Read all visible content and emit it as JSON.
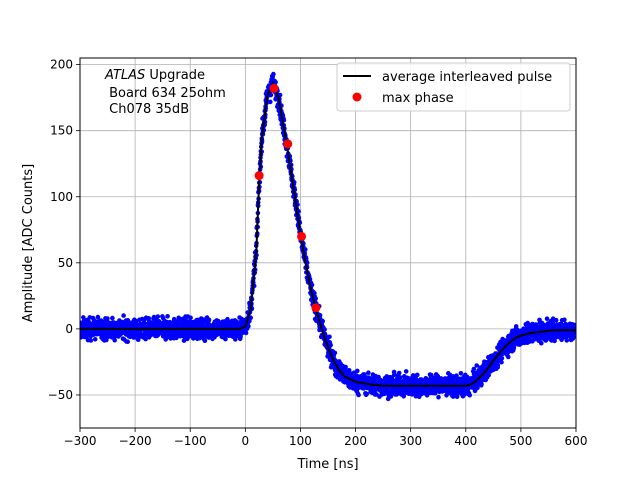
{
  "chart_data": {
    "type": "scatter",
    "xlabel": "Time [ns]",
    "ylabel": "Amplitude [ADC Counts]",
    "xlim": [
      -300,
      600
    ],
    "ylim": [
      -75,
      205
    ],
    "xticks": [
      -300,
      -200,
      -100,
      0,
      100,
      200,
      300,
      400,
      500,
      600
    ],
    "yticks": [
      -50,
      0,
      50,
      100,
      150,
      200
    ],
    "grid": true,
    "legend_position": "top-right",
    "annotation": {
      "italic": "ATLAS",
      "line1_rest": " Upgrade",
      "line2": " Board 634 25ohm",
      "line3": " Ch078 35dB"
    },
    "series": [
      {
        "name": "average interleaved pulse",
        "color": "#000000",
        "points": [
          [
            -300,
            0
          ],
          [
            -10,
            0
          ],
          [
            0,
            2
          ],
          [
            10,
            15
          ],
          [
            20,
            60
          ],
          [
            25,
            110
          ],
          [
            30,
            145
          ],
          [
            40,
            176
          ],
          [
            50,
            186
          ],
          [
            60,
            175
          ],
          [
            75,
            140
          ],
          [
            90,
            100
          ],
          [
            100,
            72
          ],
          [
            110,
            48
          ],
          [
            120,
            28
          ],
          [
            130,
            12
          ],
          [
            140,
            -2
          ],
          [
            150,
            -14
          ],
          [
            160,
            -24
          ],
          [
            170,
            -31
          ],
          [
            180,
            -36
          ],
          [
            200,
            -40
          ],
          [
            225,
            -42
          ],
          [
            250,
            -43
          ],
          [
            300,
            -43
          ],
          [
            350,
            -43
          ],
          [
            400,
            -43
          ],
          [
            410,
            -42
          ],
          [
            420,
            -39
          ],
          [
            430,
            -35
          ],
          [
            440,
            -30
          ],
          [
            450,
            -24
          ],
          [
            460,
            -19
          ],
          [
            470,
            -14
          ],
          [
            480,
            -10
          ],
          [
            490,
            -7
          ],
          [
            500,
            -5
          ],
          [
            520,
            -3
          ],
          [
            540,
            -2
          ],
          [
            560,
            -1
          ],
          [
            580,
            -1
          ],
          [
            600,
            -1
          ]
        ]
      },
      {
        "name": "max phase",
        "color": "#ff0000",
        "points": [
          [
            25,
            116
          ],
          [
            52,
            182
          ],
          [
            77,
            140
          ],
          [
            102,
            70
          ],
          [
            128,
            16
          ]
        ]
      }
    ],
    "scatter_color": "#0000ff",
    "noise_amplitude": 7
  }
}
